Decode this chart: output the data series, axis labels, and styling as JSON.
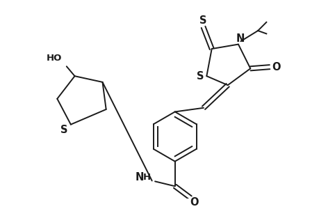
{
  "bg_color": "#ffffff",
  "line_color": "#1a1a1a",
  "line_width": 1.4,
  "font_size": 9.5,
  "fig_width": 4.6,
  "fig_height": 3.0,
  "dpi": 100,
  "xlim": [
    0,
    10
  ],
  "ylim": [
    0,
    6.5
  ]
}
